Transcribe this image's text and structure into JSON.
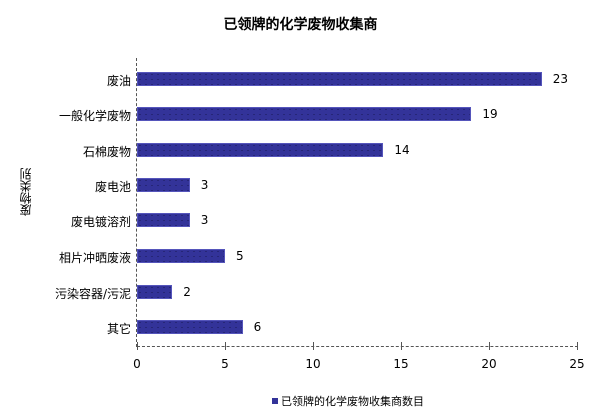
{
  "chart_data": {
    "type": "bar",
    "orientation": "horizontal",
    "title": "已领牌的化学废物收集商",
    "xlabel": "",
    "ylabel": "废物类别",
    "xlim": [
      0,
      25
    ],
    "xticks": [
      0,
      5,
      10,
      15,
      20,
      25
    ],
    "categories": [
      "废油",
      "一般化学废物",
      "石棉废物",
      "废电池",
      "废电镀溶剂",
      "相片冲晒废液",
      "污染容器/污泥",
      "其它"
    ],
    "series": [
      {
        "name": "已领牌的化学废物收集商数目",
        "values": [
          23,
          19,
          14,
          3,
          3,
          5,
          2,
          6
        ],
        "color": "#333399"
      }
    ],
    "legend_position": "bottom",
    "grid": false,
    "data_labels": true
  },
  "title": "已领牌的化学废物收集商",
  "ylabel": "废物类别",
  "legend": {
    "label": "已领牌的化学废物收集商数目"
  },
  "xticks": [
    "0",
    "5",
    "10",
    "15",
    "20",
    "25"
  ],
  "bars": [
    {
      "category": "废油",
      "value": "23"
    },
    {
      "category": "一般化学废物",
      "value": "19"
    },
    {
      "category": "石棉废物",
      "value": "14"
    },
    {
      "category": "废电池",
      "value": "3"
    },
    {
      "category": "废电镀溶剂",
      "value": "3"
    },
    {
      "category": "相片冲晒废液",
      "value": "5"
    },
    {
      "category": "污染容器/污泥",
      "value": "2"
    },
    {
      "category": "其它",
      "value": "6"
    }
  ]
}
